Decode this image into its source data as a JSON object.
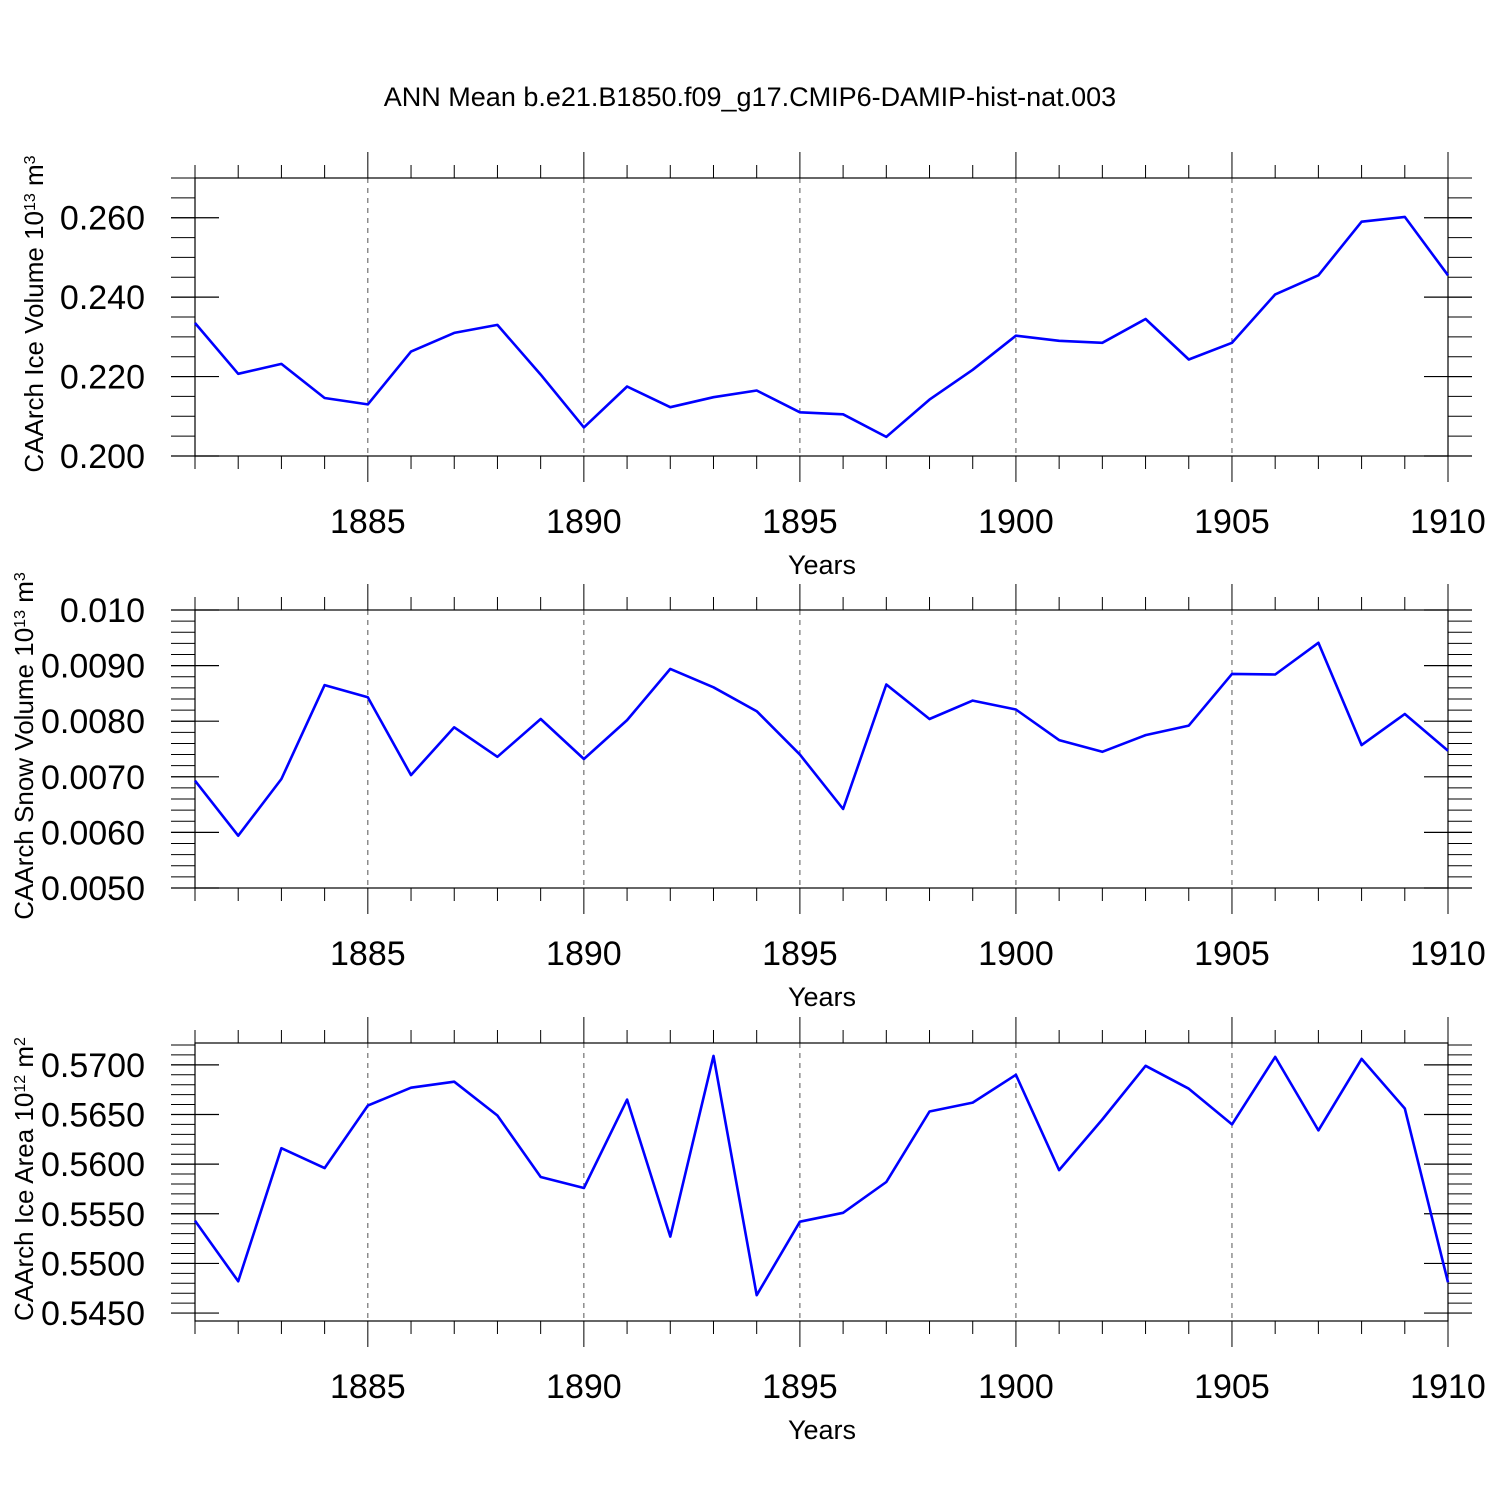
{
  "title": "ANN Mean b.e21.B1850.f09_g17.CMIP6-DAMIP-hist-nat.003",
  "colors": {
    "line": "#0000ff",
    "axis": "#000000",
    "grid": "#555555"
  },
  "chart_data": [
    {
      "type": "line",
      "name": "ice-volume",
      "ylabel": "CAArch Ice Volume 10",
      "ylabel_exp": "13",
      "ylabel_unit": " m",
      "ylabel_unit_exp": "3",
      "xlabel": "Years",
      "xlim": [
        1881,
        1910
      ],
      "ylim": [
        0.2,
        0.27
      ],
      "grid": "vertical dashed at major x ticks",
      "x_ticks": [
        {
          "value": 1885,
          "label": "1885"
        },
        {
          "value": 1890,
          "label": "1890"
        },
        {
          "value": 1895,
          "label": "1895"
        },
        {
          "value": 1900,
          "label": "1900"
        },
        {
          "value": 1905,
          "label": "1905"
        },
        {
          "value": 1910,
          "label": "1910"
        }
      ],
      "y_ticks": [
        {
          "value": 0.2,
          "label": "0.200"
        },
        {
          "value": 0.22,
          "label": "0.220"
        },
        {
          "value": 0.24,
          "label": "0.240"
        },
        {
          "value": 0.26,
          "label": "0.260"
        }
      ],
      "y_minor_step": 0.005,
      "x": [
        1881,
        1882,
        1883,
        1884,
        1885,
        1886,
        1887,
        1888,
        1889,
        1890,
        1891,
        1892,
        1893,
        1894,
        1895,
        1896,
        1897,
        1898,
        1899,
        1900,
        1901,
        1902,
        1903,
        1904,
        1905,
        1906,
        1907,
        1908,
        1909,
        1910
      ],
      "values": [
        0.2335,
        0.2207,
        0.2232,
        0.2146,
        0.213,
        0.2263,
        0.231,
        0.233,
        0.2205,
        0.2072,
        0.2175,
        0.2123,
        0.2148,
        0.2165,
        0.211,
        0.2105,
        0.2048,
        0.2142,
        0.2217,
        0.2303,
        0.229,
        0.2285,
        0.2345,
        0.2243,
        0.2285,
        0.2407,
        0.2455,
        0.259,
        0.2602,
        0.2455
      ]
    },
    {
      "type": "line",
      "name": "snow-volume",
      "ylabel": "CAArch Snow Volume 10",
      "ylabel_exp": "13",
      "ylabel_unit": " m",
      "ylabel_unit_exp": "3",
      "xlabel": "Years",
      "xlim": [
        1881,
        1910
      ],
      "ylim": [
        0.005,
        0.01
      ],
      "grid": "vertical dashed at major x ticks",
      "x_ticks": [
        {
          "value": 1885,
          "label": "1885"
        },
        {
          "value": 1890,
          "label": "1890"
        },
        {
          "value": 1895,
          "label": "1895"
        },
        {
          "value": 1900,
          "label": "1900"
        },
        {
          "value": 1905,
          "label": "1905"
        },
        {
          "value": 1910,
          "label": "1910"
        }
      ],
      "y_ticks": [
        {
          "value": 0.005,
          "label": "0.0050"
        },
        {
          "value": 0.006,
          "label": "0.0060"
        },
        {
          "value": 0.007,
          "label": "0.0070"
        },
        {
          "value": 0.008,
          "label": "0.0080"
        },
        {
          "value": 0.009,
          "label": "0.0090"
        },
        {
          "value": 0.01,
          "label": "0.010"
        }
      ],
      "y_minor_step": 0.0002,
      "x": [
        1881,
        1882,
        1883,
        1884,
        1885,
        1886,
        1887,
        1888,
        1889,
        1890,
        1891,
        1892,
        1893,
        1894,
        1895,
        1896,
        1897,
        1898,
        1899,
        1900,
        1901,
        1902,
        1903,
        1904,
        1905,
        1906,
        1907,
        1908,
        1909,
        1910
      ],
      "values": [
        0.00693,
        0.00594,
        0.00696,
        0.00865,
        0.00843,
        0.00703,
        0.00789,
        0.00736,
        0.00804,
        0.00732,
        0.00802,
        0.00894,
        0.00861,
        0.00818,
        0.0074,
        0.00642,
        0.00866,
        0.00804,
        0.00837,
        0.00821,
        0.00766,
        0.00745,
        0.00775,
        0.00792,
        0.00885,
        0.00884,
        0.00941,
        0.00757,
        0.00813,
        0.00747
      ]
    },
    {
      "type": "line",
      "name": "ice-area",
      "ylabel": "CAArch Ice Area 10",
      "ylabel_exp": "12",
      "ylabel_unit": " m",
      "ylabel_unit_exp": "2",
      "xlabel": "Years",
      "xlim": [
        1881,
        1910
      ],
      "ylim": [
        0.5442,
        0.5722
      ],
      "grid": "vertical dashed at major x ticks",
      "x_ticks": [
        {
          "value": 1885,
          "label": "1885"
        },
        {
          "value": 1890,
          "label": "1890"
        },
        {
          "value": 1895,
          "label": "1895"
        },
        {
          "value": 1900,
          "label": "1900"
        },
        {
          "value": 1905,
          "label": "1905"
        },
        {
          "value": 1910,
          "label": "1910"
        }
      ],
      "y_ticks": [
        {
          "value": 0.545,
          "label": "0.5450"
        },
        {
          "value": 0.55,
          "label": "0.5500"
        },
        {
          "value": 0.555,
          "label": "0.5550"
        },
        {
          "value": 0.56,
          "label": "0.5600"
        },
        {
          "value": 0.565,
          "label": "0.5650"
        },
        {
          "value": 0.57,
          "label": "0.5700"
        }
      ],
      "y_minor_step": 0.001,
      "x": [
        1881,
        1882,
        1883,
        1884,
        1885,
        1886,
        1887,
        1888,
        1889,
        1890,
        1891,
        1892,
        1893,
        1894,
        1895,
        1896,
        1897,
        1898,
        1899,
        1900,
        1901,
        1902,
        1903,
        1904,
        1905,
        1906,
        1907,
        1908,
        1909,
        1910
      ],
      "values": [
        0.5543,
        0.5482,
        0.5616,
        0.5596,
        0.5659,
        0.5677,
        0.5683,
        0.5649,
        0.5587,
        0.5576,
        0.5665,
        0.5527,
        0.5709,
        0.5468,
        0.5542,
        0.5551,
        0.5582,
        0.5653,
        0.5662,
        0.569,
        0.5594,
        0.5645,
        0.5699,
        0.5676,
        0.564,
        0.5708,
        0.5634,
        0.5706,
        0.5656,
        0.5481
      ]
    }
  ]
}
